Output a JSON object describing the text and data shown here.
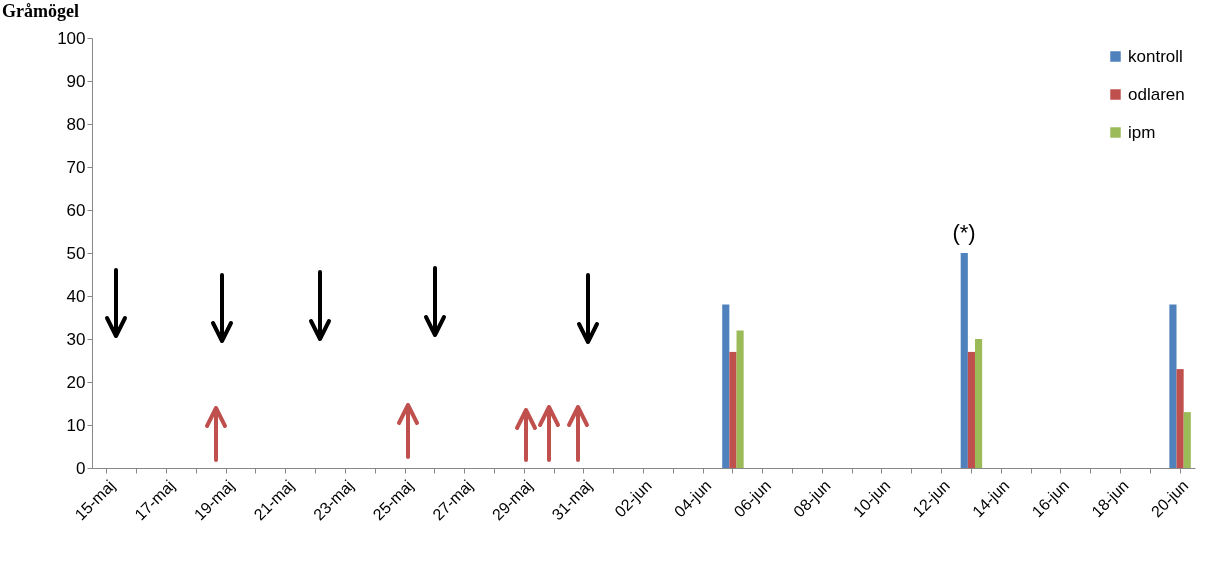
{
  "chart_data": {
    "type": "bar",
    "title": "Gråmögel",
    "categories": [
      "15-maj",
      null,
      "17-maj",
      null,
      "19-maj",
      null,
      "21-maj",
      null,
      "23-maj",
      null,
      "25-maj",
      null,
      "27-maj",
      null,
      "29-maj",
      null,
      "31-maj",
      null,
      "02-jun",
      null,
      "04-jun",
      null,
      "06-jun",
      null,
      "08-jun",
      null,
      "10-jun",
      null,
      "12-jun",
      null,
      "14-jun",
      null,
      "16-jun",
      null,
      "18-jun",
      null,
      "20-jun"
    ],
    "series": [
      {
        "name": "kontroll",
        "color": "#4f81bd",
        "values": [
          null,
          null,
          null,
          null,
          null,
          null,
          null,
          null,
          null,
          null,
          null,
          null,
          null,
          null,
          null,
          null,
          null,
          null,
          null,
          null,
          null,
          38,
          null,
          null,
          null,
          null,
          null,
          null,
          null,
          50,
          null,
          null,
          null,
          null,
          null,
          null,
          38
        ]
      },
      {
        "name": "odlaren",
        "color": "#c0504d",
        "values": [
          null,
          null,
          null,
          null,
          null,
          null,
          null,
          null,
          null,
          null,
          null,
          null,
          null,
          null,
          null,
          null,
          null,
          null,
          null,
          null,
          null,
          27,
          null,
          null,
          null,
          null,
          null,
          null,
          null,
          27,
          null,
          null,
          null,
          null,
          null,
          null,
          23
        ]
      },
      {
        "name": "ipm",
        "color": "#9bbb59",
        "values": [
          null,
          null,
          null,
          null,
          null,
          null,
          null,
          null,
          null,
          null,
          null,
          null,
          null,
          null,
          null,
          null,
          null,
          null,
          null,
          null,
          null,
          32,
          null,
          null,
          null,
          null,
          null,
          null,
          null,
          30,
          null,
          null,
          null,
          null,
          null,
          null,
          13
        ]
      }
    ],
    "ylim": [
      0,
      100
    ],
    "yticks": [
      0,
      10,
      20,
      30,
      40,
      50,
      60,
      70,
      80,
      90,
      100
    ],
    "legend": "top right",
    "annotations": [
      "(*)"
    ]
  }
}
